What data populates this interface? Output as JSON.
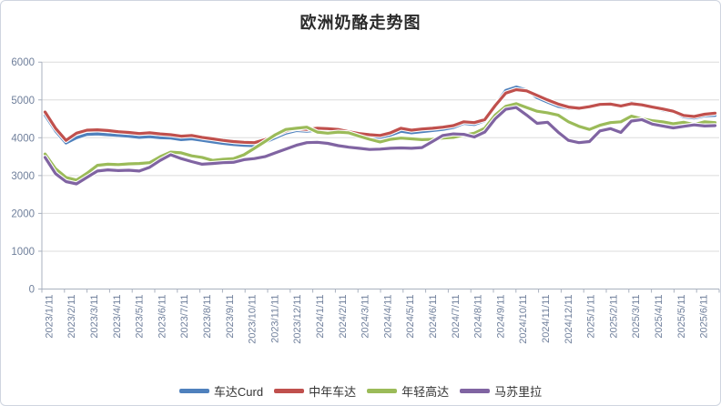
{
  "title": "欧洲奶酪走势图",
  "chart_data": {
    "type": "line",
    "title": "欧洲奶酪走势图",
    "xlabel": "",
    "ylabel": "",
    "grid": true,
    "legend_position": "bottom",
    "x_tick_labels": [
      "2023/1/11",
      "2023/2/11",
      "2023/3/11",
      "2023/4/11",
      "2023/5/11",
      "2023/6/11",
      "2023/7/11",
      "2023/8/11",
      "2023/9/11",
      "2023/10/11",
      "2023/11/11",
      "2023/12/11",
      "2024/1/11",
      "2024/2/11",
      "2024/3/11",
      "2024/4/11",
      "2024/5/11",
      "2024/6/11",
      "2024/7/11",
      "2024/8/11",
      "2024/9/11",
      "2024/10/11",
      "2024/11/11",
      "2024/12/11",
      "2025/1/11",
      "2025/2/11",
      "2025/3/11",
      "2025/4/11",
      "2025/5/11",
      "2025/6/11"
    ],
    "y_axis": {
      "min": 0,
      "max": 6000,
      "step": 1000,
      "tick_labels": [
        "0",
        "1000",
        "2000",
        "3000",
        "4000",
        "5000",
        "6000"
      ]
    },
    "x_sampling": "biweekly points starting 2023/1/11",
    "series": [
      {
        "name": "车达Curd",
        "color": "#4F81BD",
        "values": [
          4600,
          4180,
          3860,
          4000,
          4090,
          4100,
          4080,
          4060,
          4040,
          4010,
          4030,
          4000,
          3990,
          3950,
          3970,
          3930,
          3890,
          3850,
          3820,
          3800,
          3790,
          3880,
          4000,
          4120,
          4190,
          4170,
          4200,
          4190,
          4170,
          4110,
          4060,
          4030,
          4010,
          4070,
          4170,
          4130,
          4160,
          4190,
          4220,
          4270,
          4380,
          4350,
          4450,
          4870,
          5250,
          5340,
          5260,
          5060,
          4940,
          4830,
          4780,
          4760,
          4810,
          4890,
          4910,
          4850,
          4930,
          4880,
          4800,
          4730,
          4680,
          4550,
          4520,
          4580,
          4590
        ]
      },
      {
        "name": "中年车达",
        "color": "#C0504D",
        "values": [
          4680,
          4250,
          3930,
          4120,
          4200,
          4210,
          4190,
          4160,
          4140,
          4110,
          4130,
          4100,
          4080,
          4040,
          4060,
          4010,
          3970,
          3930,
          3900,
          3880,
          3870,
          3950,
          4060,
          4180,
          4240,
          4220,
          4250,
          4240,
          4220,
          4160,
          4110,
          4080,
          4060,
          4130,
          4250,
          4200,
          4230,
          4250,
          4280,
          4320,
          4420,
          4400,
          4480,
          4850,
          5180,
          5270,
          5240,
          5120,
          5000,
          4890,
          4810,
          4780,
          4820,
          4880,
          4890,
          4840,
          4900,
          4870,
          4810,
          4760,
          4700,
          4590,
          4560,
          4620,
          4650
        ]
      },
      {
        "name": "年轻高达",
        "color": "#9BBB59",
        "values": [
          3570,
          3180,
          2950,
          2880,
          3060,
          3270,
          3300,
          3290,
          3310,
          3320,
          3340,
          3500,
          3620,
          3600,
          3520,
          3480,
          3400,
          3430,
          3450,
          3550,
          3720,
          3900,
          4080,
          4220,
          4250,
          4280,
          4150,
          4120,
          4150,
          4130,
          4040,
          3960,
          3890,
          3960,
          3990,
          3970,
          3950,
          3960,
          3990,
          4010,
          4070,
          4120,
          4250,
          4600,
          4830,
          4900,
          4800,
          4700,
          4660,
          4600,
          4420,
          4300,
          4220,
          4330,
          4400,
          4420,
          4570,
          4500,
          4450,
          4420,
          4370,
          4410,
          4350,
          4420,
          4400
        ]
      },
      {
        "name": "马苏里拉",
        "color": "#8064A2",
        "values": [
          3480,
          3050,
          2840,
          2780,
          2950,
          3120,
          3150,
          3130,
          3140,
          3120,
          3220,
          3400,
          3550,
          3450,
          3370,
          3300,
          3320,
          3340,
          3350,
          3420,
          3450,
          3500,
          3600,
          3700,
          3800,
          3870,
          3880,
          3850,
          3790,
          3750,
          3720,
          3690,
          3700,
          3720,
          3730,
          3720,
          3740,
          3900,
          4060,
          4100,
          4090,
          4020,
          4150,
          4500,
          4750,
          4800,
          4600,
          4380,
          4410,
          4150,
          3930,
          3870,
          3900,
          4180,
          4240,
          4140,
          4440,
          4480,
          4360,
          4310,
          4260,
          4300,
          4340,
          4310,
          4320
        ]
      }
    ]
  },
  "style_colors": {
    "gridline": "#dbdbdb",
    "axis": "#a9b1bf",
    "axis_label_text": "#6f7f9b",
    "title_text": "#2b2b2b",
    "legend_text": "#333333",
    "halo": "#ffffff"
  }
}
